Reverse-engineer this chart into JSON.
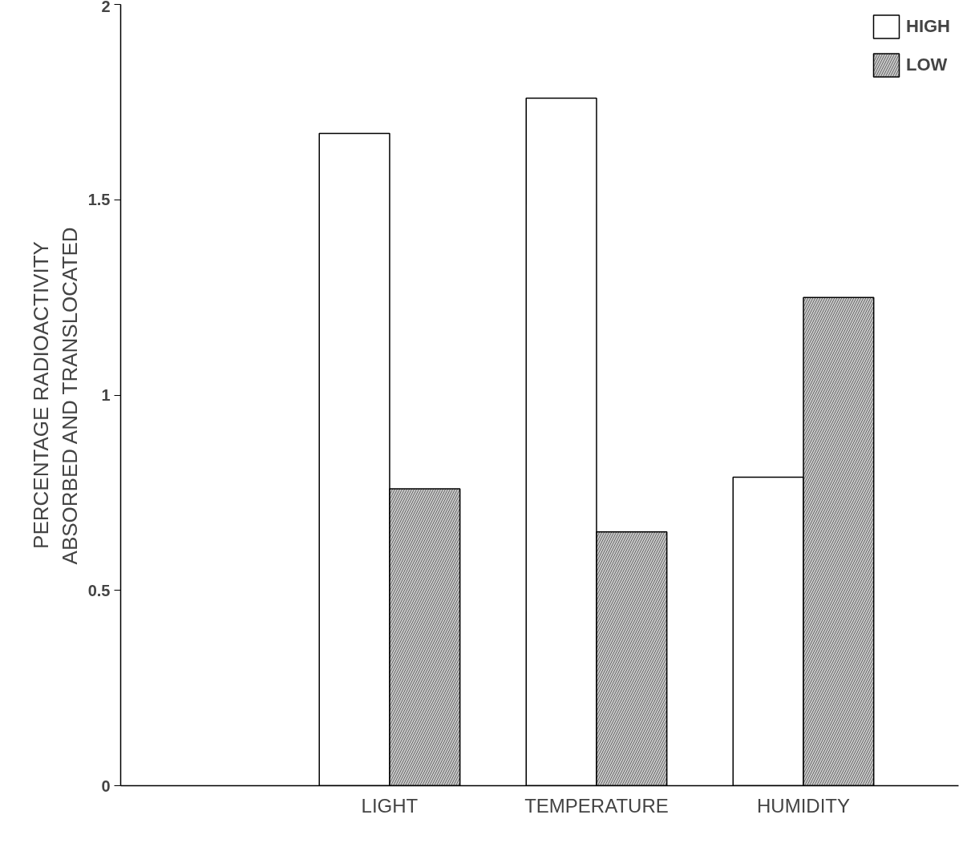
{
  "chart_data": {
    "type": "bar",
    "ylabel": "PERCENTAGE RADIOACTIVITY\nABSORBED AND TRANSLOCATED",
    "categories": [
      "LIGHT",
      "TEMPERATURE",
      "HUMIDITY"
    ],
    "series": [
      {
        "name": "HIGH",
        "color": "#ffffff",
        "values": [
          1.67,
          1.76,
          0.79
        ]
      },
      {
        "name": "LOW",
        "color": "#c8c8c8",
        "values": [
          0.76,
          0.65,
          1.25
        ]
      }
    ],
    "ylim": [
      0,
      2
    ],
    "yticks": [
      0,
      0.5,
      1,
      1.5,
      2
    ],
    "grid": false,
    "legend": "top right"
  }
}
